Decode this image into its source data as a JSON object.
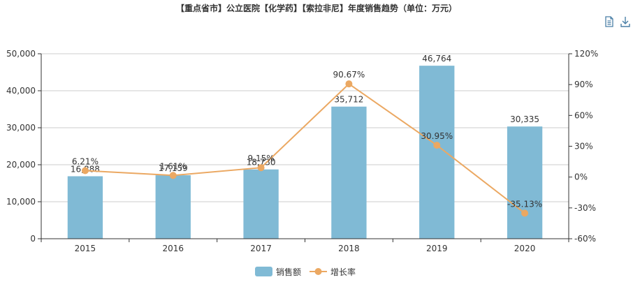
{
  "title": "【重点省市】公立医院【化学药】【索拉非尼】年度销售趋势（单位：万元）",
  "toolbox": [
    {
      "icon": "data-view-icon"
    },
    {
      "icon": "download-icon"
    }
  ],
  "colors": {
    "bar": "#80bad5",
    "line": "#eba862",
    "grid": "#cccccc",
    "axis": "#333333"
  },
  "legend": [
    {
      "label": "销售额",
      "type": "bar"
    },
    {
      "label": "增长率",
      "type": "line"
    }
  ],
  "chart_data": {
    "type": "bar",
    "categories": [
      "2015",
      "2016",
      "2017",
      "2018",
      "2019",
      "2020"
    ],
    "series": [
      {
        "name": "销售额",
        "type": "bar",
        "axis": "left",
        "values": [
          16888,
          17159,
          18730,
          35712,
          46764,
          30335
        ],
        "labels": [
          "16,888",
          "17,159",
          "18,730",
          "35,712",
          "46,764",
          "30,335"
        ]
      },
      {
        "name": "增长率",
        "type": "line",
        "axis": "right",
        "values": [
          6.21,
          1.61,
          9.15,
          90.67,
          30.95,
          -35.13
        ],
        "labels": [
          "6.21%",
          "1.61%",
          "9.15%",
          "90.67%",
          "30.95%",
          "-35.13%"
        ]
      }
    ],
    "y_left": {
      "ylim": [
        0,
        50000
      ],
      "ticks": [
        "0",
        "10,000",
        "20,000",
        "30,000",
        "40,000",
        "50,000"
      ]
    },
    "y_right": {
      "ylim": [
        -60,
        120
      ],
      "ticks": [
        "-60%",
        "-30%",
        "0%",
        "30%",
        "60%",
        "90%",
        "120%"
      ]
    },
    "grid": true,
    "legend_position": "bottom-center"
  }
}
